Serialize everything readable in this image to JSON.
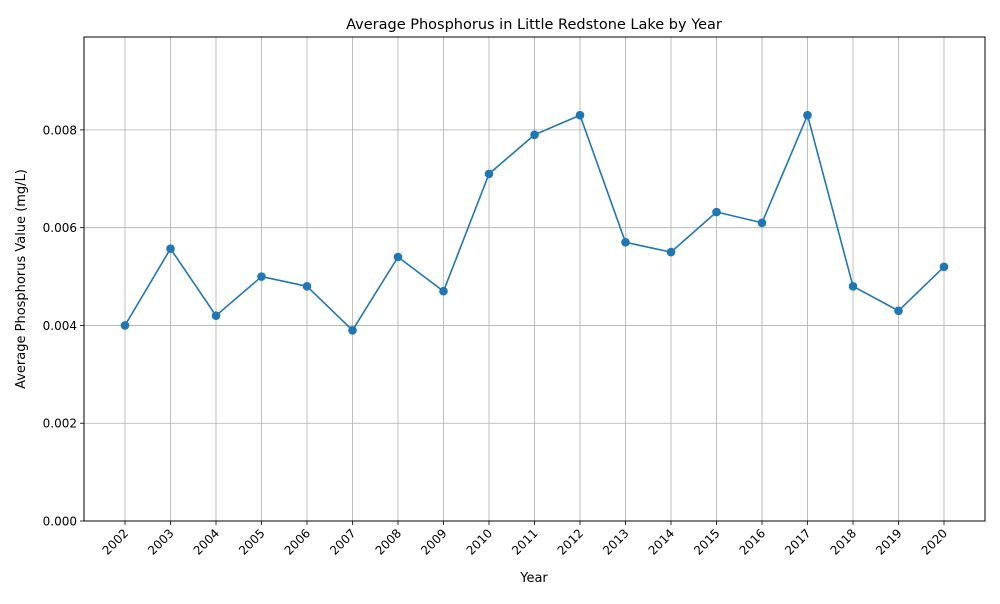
{
  "chart_data": {
    "type": "line",
    "title": "Average Phosphorus in Little Redstone Lake by Year",
    "xlabel": "Year",
    "ylabel": "Average Phosphorus Value (mg/L)",
    "categories": [
      "2002",
      "2003",
      "2004",
      "2005",
      "2006",
      "2007",
      "2008",
      "2009",
      "2010",
      "2011",
      "2012",
      "2013",
      "2014",
      "2015",
      "2016",
      "2017",
      "2018",
      "2019",
      "2020"
    ],
    "values": [
      0.004,
      0.00557,
      0.0042,
      0.005,
      0.0048,
      0.0039,
      0.0054,
      0.0047,
      0.0071,
      0.0079,
      0.0083,
      0.0057,
      0.0055,
      0.00632,
      0.0061,
      0.0083,
      0.0048,
      0.0043,
      0.0052
    ],
    "yticks": [
      "0.000",
      "0.002",
      "0.004",
      "0.006",
      "0.008"
    ],
    "ylim": [
      0,
      0.0099
    ],
    "grid": true,
    "line_color": "#1f77b4"
  }
}
